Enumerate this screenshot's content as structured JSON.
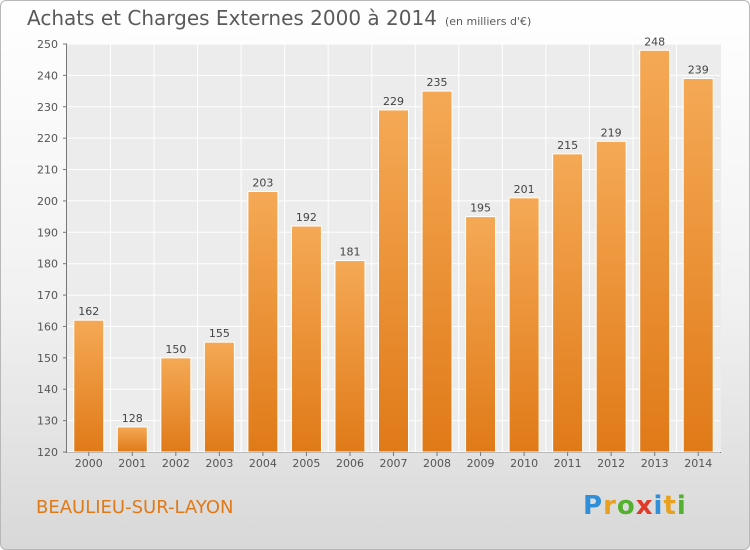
{
  "header": {
    "title": "Achats et Charges Externes 2000 à 2014",
    "unit": "(en milliers d'€)"
  },
  "footer": {
    "city": "BEAULIEU-SUR-LAYON",
    "logo_text": "Proxiti"
  },
  "colors": {
    "bar_top": "#f5a955",
    "bar_bottom": "#e07a18",
    "city": "#e07a18"
  },
  "chart_data": {
    "type": "bar",
    "categories": [
      "2000",
      "2001",
      "2002",
      "2003",
      "2004",
      "2005",
      "2006",
      "2007",
      "2008",
      "2009",
      "2010",
      "2011",
      "2012",
      "2013",
      "2014"
    ],
    "values": [
      162,
      128,
      150,
      155,
      203,
      192,
      181,
      229,
      235,
      195,
      201,
      215,
      219,
      248,
      239
    ],
    "title": "Achats et Charges Externes 2000 à 2014",
    "ylabel": "",
    "xlabel": "",
    "ylim": [
      120,
      250
    ],
    "yticks": [
      120,
      130,
      140,
      150,
      160,
      170,
      180,
      190,
      200,
      210,
      220,
      230,
      240,
      250
    ],
    "grid": true,
    "data_labels": true
  }
}
